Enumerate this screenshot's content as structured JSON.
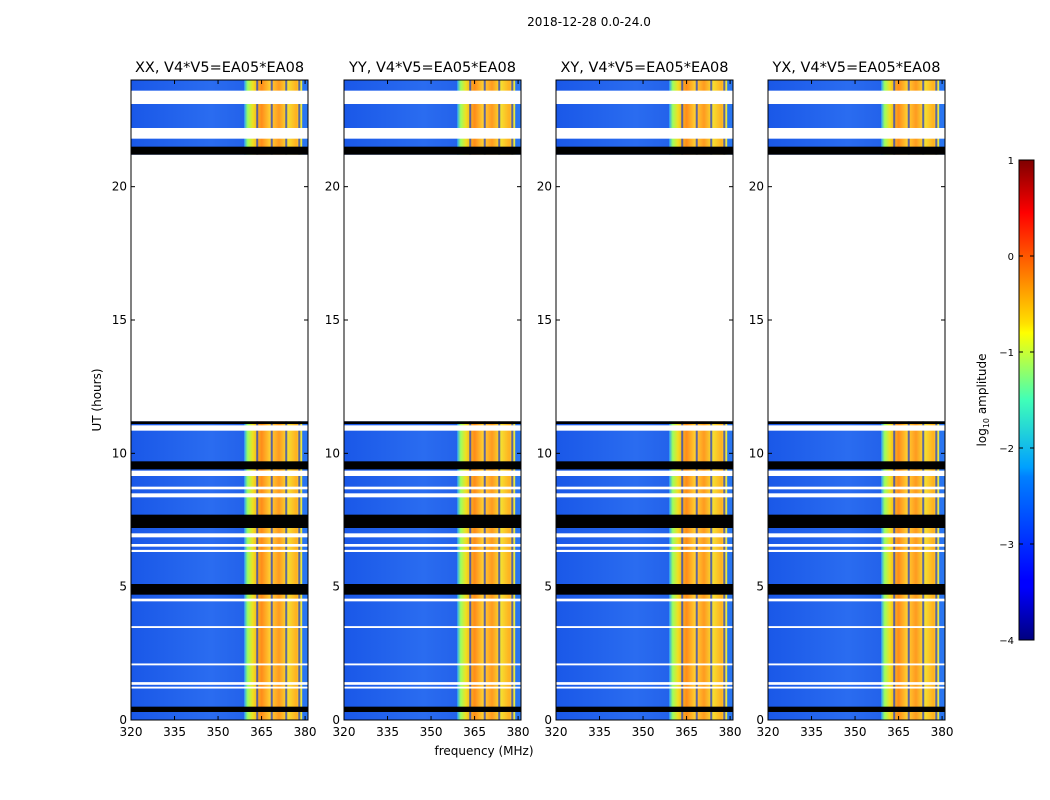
{
  "figure_title": "2018-12-28 0.0-24.0",
  "colormap": "jet",
  "chart_data": {
    "type": "heatmap",
    "suptitle": "2018-12-28 0.0-24.0",
    "ylabel": "UT (hours)",
    "xlabel": "frequency (MHz)",
    "xlim": [
      320,
      381
    ],
    "ylim": [
      0,
      24
    ],
    "xticks": [
      320,
      335,
      350,
      365,
      380
    ],
    "yticks": [
      0,
      5,
      10,
      15,
      20
    ],
    "panels": [
      {
        "pol": "XX",
        "title": "XX, V4*V5=EA05*EA08"
      },
      {
        "pol": "YY",
        "title": "YY, V4*V5=EA05*EA08"
      },
      {
        "pol": "XY",
        "title": "XY, V4*V5=EA05*EA08"
      },
      {
        "pol": "YX",
        "title": "YX, V4*V5=EA05*EA08"
      }
    ],
    "signal_band_mhz": [
      359,
      379
    ],
    "signal_channel_gaps_mhz": [
      363.5,
      368.5,
      373.5,
      378.0
    ],
    "data_time_ranges_hours": [
      [
        0,
        11.2
      ],
      [
        21.2,
        24
      ]
    ],
    "no_data_hours": [
      11.2,
      21.2
    ],
    "flagged_black_rows_hours": [
      [
        21.2,
        21.5
      ],
      [
        11.1,
        11.2
      ],
      [
        9.4,
        9.7
      ],
      [
        7.2,
        7.7
      ],
      [
        4.7,
        5.1
      ],
      [
        0.3,
        0.5
      ]
    ],
    "blank_white_rows_hours": [
      [
        23.1,
        23.6
      ],
      [
        21.8,
        22.2
      ],
      [
        10.85,
        11.05
      ],
      [
        9.15,
        9.35
      ],
      [
        8.65,
        8.75
      ],
      [
        8.35,
        8.5
      ],
      [
        6.85,
        7.0
      ],
      [
        6.5,
        6.6
      ],
      [
        6.3,
        6.38
      ],
      [
        4.45,
        4.55
      ],
      [
        3.45,
        3.52
      ],
      [
        2.05,
        2.12
      ],
      [
        1.32,
        1.42
      ],
      [
        1.18,
        1.25
      ]
    ],
    "colorbar": {
      "label": "log10 amplitude",
      "label_main": "log",
      "label_sub": "10",
      "label_rest": " amplitude",
      "vmin": -4,
      "vmax": 1,
      "ticks": [
        "1",
        "0",
        "−1",
        "−2",
        "−3",
        "−4"
      ],
      "tick_values": [
        1,
        0,
        -1,
        -2,
        -3,
        -4
      ]
    }
  }
}
